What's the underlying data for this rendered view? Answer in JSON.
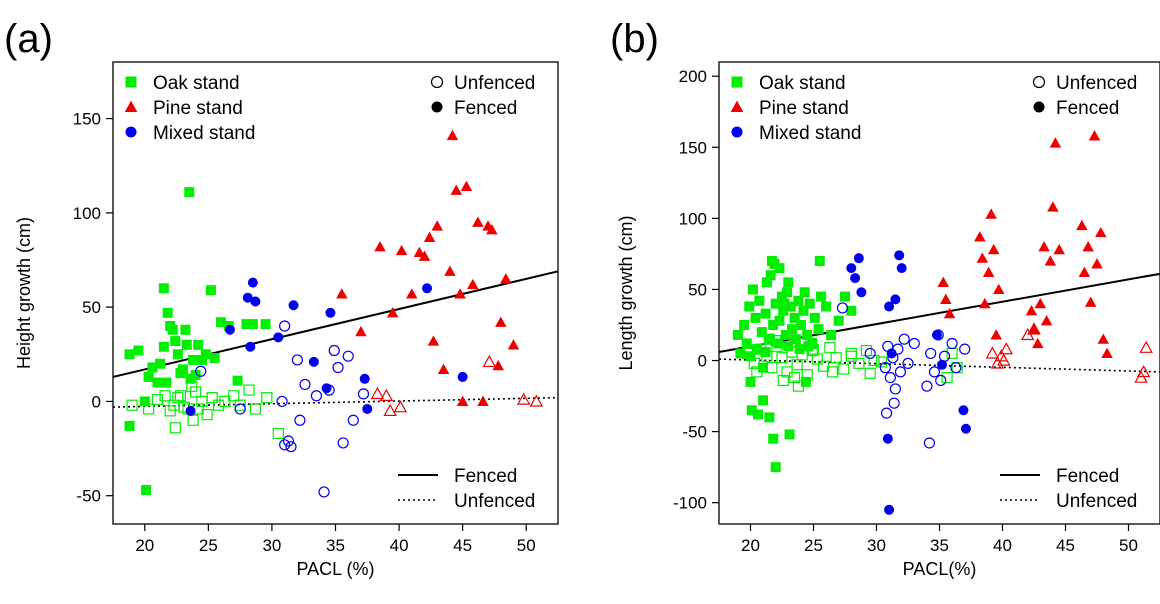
{
  "chart_data": [
    {
      "type": "scatter",
      "panel_label": "(a)",
      "title": "",
      "xlabel": "PACL (%)",
      "ylabel": "Height growth (cm)",
      "xlim": [
        17.5,
        52.5
      ],
      "ylim": [
        -65,
        180
      ],
      "xticks": [
        20,
        25,
        30,
        35,
        40,
        45,
        50
      ],
      "yticks": [
        -50,
        0,
        50,
        100,
        150
      ],
      "grid": false,
      "legend_stand": {
        "placement": "top-left",
        "entries": [
          {
            "label": "Oak stand",
            "marker": "square",
            "color": "#00ee00"
          },
          {
            "label": "Pine stand",
            "marker": "triangle",
            "color": "#ee0000"
          },
          {
            "label": "Mixed stand",
            "marker": "circle",
            "color": "#0000ee"
          }
        ]
      },
      "legend_fence": {
        "placement": "top-right",
        "entries": [
          {
            "label": "Unfenced",
            "filled": false
          },
          {
            "label": "Fenced",
            "filled": true
          }
        ]
      },
      "legend_lines": {
        "placement": "bottom-right",
        "entries": [
          {
            "label": "Fenced",
            "dash": "solid"
          },
          {
            "label": "Unfenced",
            "dash": "dotted"
          }
        ]
      },
      "lines": [
        {
          "name": "Fenced",
          "dash": "solid",
          "x": [
            17.5,
            52.5
          ],
          "y": [
            13,
            69
          ]
        },
        {
          "name": "Unfenced",
          "dash": "dotted",
          "x": [
            17.5,
            52.5
          ],
          "y": [
            -3,
            2
          ]
        }
      ],
      "series": [
        {
          "stand": "Oak",
          "marker": "square",
          "color": "#00ee00",
          "filled": true,
          "x": [
            18.8,
            19.5,
            20.0,
            20.3,
            20.6,
            21.0,
            21.2,
            21.5,
            21.7,
            21.8,
            22.0,
            22.2,
            22.4,
            22.6,
            22.8,
            23.0,
            23.2,
            23.3,
            23.5,
            23.6,
            23.8,
            24.0,
            24.2,
            24.5,
            24.8,
            25.2,
            25.5,
            26.0,
            26.6,
            27.3,
            28.0,
            28.5,
            29.5,
            18.8,
            20.1,
            21.5
          ],
          "y": [
            25,
            27,
            0,
            13,
            18,
            10,
            20,
            29,
            10,
            47,
            40,
            38,
            32,
            25,
            15,
            17,
            38,
            30,
            111,
            12,
            22,
            14,
            30,
            22,
            25,
            59,
            23,
            42,
            40,
            11,
            41,
            41,
            41,
            -13,
            -47,
            60
          ]
        },
        {
          "stand": "Oak",
          "marker": "square",
          "color": "#00ee00",
          "filled": false,
          "x": [
            19.0,
            20.3,
            21.0,
            21.6,
            22.0,
            22.3,
            22.6,
            22.8,
            23.1,
            23.4,
            23.7,
            24.0,
            24.2,
            24.5,
            24.9,
            25.3,
            25.8,
            26.3,
            27.0,
            27.5,
            28.2,
            28.7,
            29.6,
            30.5,
            22.4,
            23.8
          ],
          "y": [
            -2,
            -4,
            1,
            3,
            -5,
            -2,
            2,
            3,
            -3,
            -4,
            8,
            5,
            -4,
            0,
            -7,
            2,
            -2,
            0,
            3,
            -2,
            6,
            -4,
            2,
            -17,
            -14,
            -10
          ]
        },
        {
          "stand": "Pine",
          "marker": "triangle",
          "color": "#ee0000",
          "filled": true,
          "x": [
            35.5,
            37.0,
            38.5,
            39.5,
            40.2,
            41.0,
            41.6,
            42.0,
            42.4,
            42.7,
            43.0,
            43.5,
            44.0,
            44.2,
            44.5,
            44.8,
            45.0,
            45.3,
            45.8,
            46.2,
            46.6,
            47.0,
            47.3,
            47.8,
            48.0,
            48.4,
            49.0
          ],
          "y": [
            57,
            37,
            82,
            47,
            80,
            57,
            79,
            77,
            87,
            32,
            93,
            17,
            69,
            141,
            112,
            57,
            0,
            114,
            62,
            95,
            0,
            93,
            91,
            19,
            42,
            65,
            30
          ]
        },
        {
          "stand": "Pine",
          "marker": "triangle",
          "color": "#ee0000",
          "filled": false,
          "x": [
            38.3,
            39.0,
            39.3,
            40.1,
            47.1,
            49.8,
            50.8
          ],
          "y": [
            4,
            3,
            -5,
            -3,
            21,
            1,
            0
          ]
        },
        {
          "stand": "Mixed",
          "marker": "circle",
          "color": "#0000ee",
          "filled": true,
          "x": [
            23.6,
            26.7,
            28.1,
            28.3,
            28.5,
            28.7,
            30.5,
            31.7,
            33.3,
            34.3,
            34.6,
            37.3,
            37.5,
            42.2,
            45.0
          ],
          "y": [
            -5,
            38,
            55,
            29,
            63,
            53,
            34,
            51,
            21,
            7,
            47,
            12,
            -4,
            60,
            13
          ]
        },
        {
          "stand": "Mixed",
          "marker": "circle",
          "color": "#0000ee",
          "filled": false,
          "x": [
            24.4,
            27.5,
            30.8,
            31.0,
            31.3,
            31.5,
            32.2,
            32.6,
            33.5,
            34.1,
            34.5,
            34.9,
            35.2,
            35.6,
            36.0,
            36.4,
            37.2,
            31.0,
            32.0
          ],
          "y": [
            16,
            -4,
            0,
            -23,
            -21,
            -24,
            -10,
            9,
            3,
            -48,
            6,
            27,
            18,
            -22,
            24,
            -10,
            4,
            40,
            22
          ]
        }
      ]
    },
    {
      "type": "scatter",
      "panel_label": "(b)",
      "title": "",
      "xlabel": "PACL(%)",
      "ylabel": "Length growth (cm)",
      "xlim": [
        17.5,
        52.5
      ],
      "ylim": [
        -115,
        210
      ],
      "xticks": [
        20,
        25,
        30,
        35,
        40,
        45,
        50
      ],
      "yticks": [
        -100,
        -50,
        0,
        50,
        100,
        150,
        200
      ],
      "grid": false,
      "legend_stand": {
        "placement": "top-left",
        "entries": [
          {
            "label": "Oak stand",
            "marker": "square",
            "color": "#00ee00"
          },
          {
            "label": "Pine stand",
            "marker": "triangle",
            "color": "#ee0000"
          },
          {
            "label": "Mixed stand",
            "marker": "circle",
            "color": "#0000ee"
          }
        ]
      },
      "legend_fence": {
        "placement": "top-right",
        "entries": [
          {
            "label": "Unfenced",
            "filled": false
          },
          {
            "label": "Fenced",
            "filled": true
          }
        ]
      },
      "legend_lines": {
        "placement": "bottom-right",
        "entries": [
          {
            "label": "Fenced",
            "dash": "solid"
          },
          {
            "label": "Unfenced",
            "dash": "dotted"
          }
        ]
      },
      "lines": [
        {
          "name": "Fenced",
          "dash": "solid",
          "x": [
            17.5,
            52.5
          ],
          "y": [
            6,
            61
          ]
        },
        {
          "name": "Unfenced",
          "dash": "dotted",
          "x": [
            17.5,
            52.5
          ],
          "y": [
            1,
            -8
          ]
        }
      ],
      "series": [
        {
          "stand": "Oak",
          "marker": "square",
          "color": "#00ee00",
          "filled": true,
          "x": [
            19.0,
            19.2,
            19.5,
            19.7,
            19.9,
            20.0,
            20.2,
            20.4,
            20.5,
            20.7,
            20.9,
            21.0,
            21.2,
            21.3,
            21.5,
            21.6,
            21.8,
            21.9,
            22.0,
            22.2,
            22.3,
            22.5,
            22.6,
            22.8,
            22.9,
            23.0,
            23.2,
            23.3,
            23.5,
            23.6,
            23.8,
            23.9,
            24.0,
            24.2,
            24.3,
            24.5,
            24.7,
            24.9,
            25.1,
            25.4,
            25.6,
            26.0,
            26.4,
            27.0,
            27.5,
            28.0,
            20.1,
            20.6,
            21.0,
            21.5,
            21.8,
            22.0,
            23.1,
            24.4,
            21.7,
            22.3,
            20.0,
            23.0,
            24.6,
            25.5,
            22.7,
            21.2
          ],
          "y": [
            18,
            5,
            25,
            12,
            38,
            -15,
            50,
            30,
            8,
            42,
            20,
            -5,
            33,
            55,
            15,
            60,
            25,
            68,
            40,
            12,
            28,
            45,
            35,
            18,
            48,
            10,
            38,
            22,
            30,
            15,
            42,
            8,
            25,
            35,
            48,
            18,
            40,
            12,
            30,
            22,
            45,
            38,
            18,
            28,
            45,
            35,
            -35,
            -38,
            -28,
            -40,
            -55,
            -75,
            -52,
            -15,
            70,
            65,
            3,
            55,
            10,
            70,
            40,
            6
          ]
        },
        {
          "stand": "Oak",
          "marker": "square",
          "color": "#00ee00",
          "filled": false,
          "x": [
            19.8,
            20.3,
            20.8,
            21.3,
            21.7,
            22.1,
            22.5,
            22.9,
            23.3,
            23.7,
            24.1,
            24.5,
            24.9,
            25.3,
            25.8,
            26.3,
            26.8,
            27.4,
            28.0,
            28.6,
            29.2,
            29.8,
            30.4,
            35.6,
            36.0,
            36.4,
            21.5,
            22.6,
            23.8,
            24.8,
            20.5,
            22.0,
            23.5,
            25.0,
            26.5,
            28.0,
            29.5
          ],
          "y": [
            5,
            -2,
            8,
            3,
            -5,
            10,
            2,
            -8,
            6,
            -3,
            4,
            -10,
            7,
            1,
            -4,
            9,
            2,
            -6,
            5,
            -2,
            7,
            0,
            -1,
            -12,
            5,
            -5,
            15,
            -14,
            -18,
            12,
            -8,
            14,
            -12,
            8,
            -8,
            3,
            -9
          ]
        },
        {
          "stand": "Pine",
          "marker": "triangle",
          "color": "#ee0000",
          "filled": true,
          "x": [
            35.3,
            35.5,
            35.8,
            38.2,
            38.4,
            38.6,
            38.9,
            39.1,
            39.3,
            39.5,
            39.7,
            42.3,
            42.5,
            42.8,
            43.0,
            43.3,
            43.5,
            43.8,
            44.0,
            44.2,
            44.5,
            46.3,
            46.5,
            46.8,
            47.0,
            47.3,
            47.5,
            47.8,
            48.0,
            48.3
          ],
          "y": [
            55,
            43,
            33,
            87,
            72,
            40,
            62,
            103,
            78,
            18,
            50,
            35,
            22,
            12,
            40,
            80,
            28,
            70,
            108,
            153,
            78,
            95,
            62,
            80,
            41,
            158,
            68,
            90,
            15,
            5
          ]
        },
        {
          "stand": "Pine",
          "marker": "triangle",
          "color": "#ee0000",
          "filled": false,
          "x": [
            39.2,
            39.6,
            39.9,
            40.1,
            40.3,
            42.0,
            42.5,
            51.2,
            51.4,
            51.0
          ],
          "y": [
            5,
            -2,
            3,
            0,
            8,
            18,
            22,
            -8,
            9,
            -12
          ]
        },
        {
          "stand": "Mixed",
          "marker": "circle",
          "color": "#0000ee",
          "filled": true,
          "x": [
            28.0,
            28.3,
            28.6,
            28.8,
            31.0,
            31.2,
            31.5,
            31.8,
            32.0,
            34.8,
            35.2,
            36.9,
            37.1,
            30.9,
            31.0
          ],
          "y": [
            65,
            58,
            72,
            48,
            38,
            5,
            43,
            74,
            65,
            18,
            -3,
            -35,
            -48,
            -55,
            -105
          ]
        },
        {
          "stand": "Mixed",
          "marker": "circle",
          "color": "#0000ee",
          "filled": false,
          "x": [
            27.3,
            29.5,
            30.7,
            30.9,
            31.1,
            31.3,
            31.5,
            31.7,
            31.9,
            32.2,
            32.5,
            33.0,
            34.0,
            34.3,
            34.6,
            34.9,
            35.1,
            35.4,
            36.0,
            36.3,
            37.0,
            30.8,
            31.4,
            34.2
          ],
          "y": [
            37,
            5,
            -5,
            10,
            -12,
            2,
            -20,
            8,
            -8,
            15,
            -2,
            12,
            -18,
            5,
            -8,
            18,
            -14,
            3,
            12,
            -5,
            8,
            -37,
            -30,
            -58
          ]
        }
      ]
    }
  ]
}
